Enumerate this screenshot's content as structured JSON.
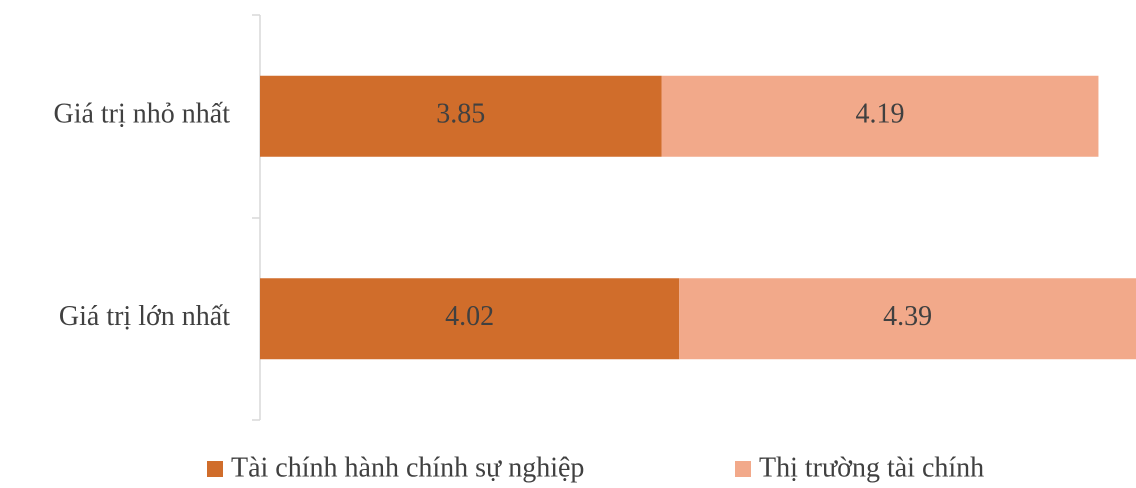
{
  "chart_data": {
    "type": "stacked_barh",
    "categories": [
      "Giá trị nhỏ nhất",
      "Giá trị lớn nhất"
    ],
    "series": [
      {
        "name": "Tài chính hành chính sự nghiệp",
        "color": "#d06d2b",
        "values": [
          3.85,
          4.02
        ]
      },
      {
        "name": "Thị trường tài chính",
        "color": "#f2a98a",
        "values": [
          4.19,
          4.39
        ]
      }
    ],
    "xlim": [
      0,
      8.4
    ],
    "legend": "bottom"
  }
}
